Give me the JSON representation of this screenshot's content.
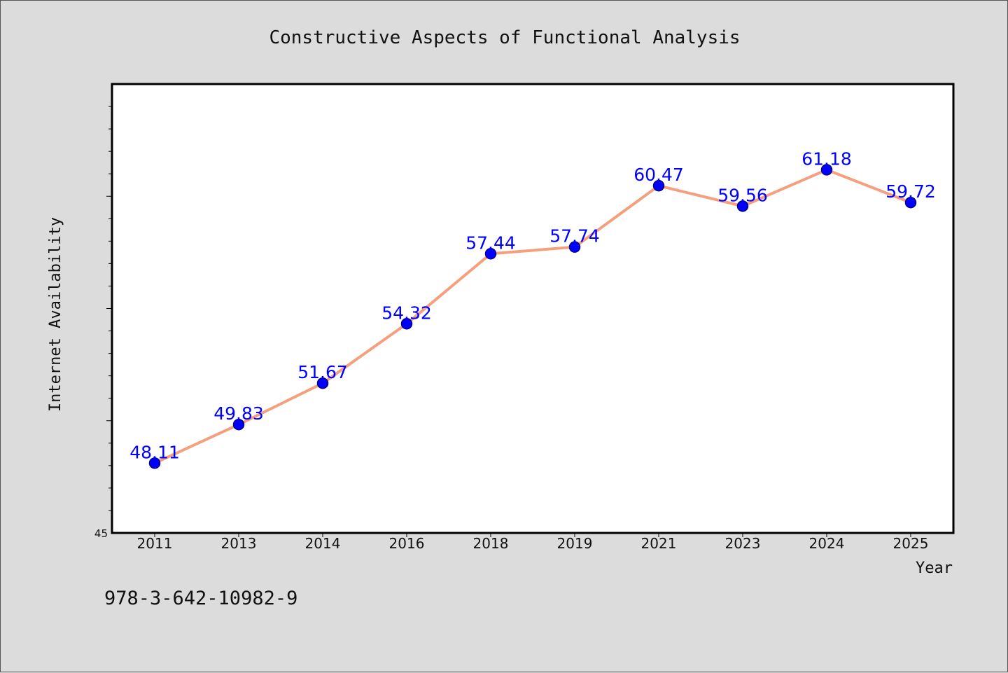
{
  "chart_data": {
    "type": "line",
    "title": "Constructive Aspects of Functional Analysis",
    "xlabel": "Year",
    "ylabel": "Internet Availability",
    "categories": [
      "2011",
      "2013",
      "2014",
      "2016",
      "2018",
      "2019",
      "2021",
      "2023",
      "2024",
      "2025"
    ],
    "series": [
      {
        "values": [
          48.11,
          49.83,
          51.67,
          54.32,
          57.44,
          57.74,
          60.47,
          59.56,
          61.18,
          59.72
        ],
        "data_labels": [
          "48.11",
          "49.83",
          "51.67",
          "54.32",
          "57.44",
          "57.74",
          "60.47",
          "59.56",
          "61.18",
          "59.72"
        ]
      }
    ],
    "ylim": [
      45,
      65
    ],
    "yticks_labeled": [
      "45"
    ],
    "y_minor_tick_step": 1,
    "grid": false,
    "legend": "none",
    "colors": {
      "line": "#f4a07e",
      "marker": "#0000ff",
      "marker_edge": "#000080",
      "labels": "#0000ff"
    }
  },
  "footer_text": "978-3-642-10982-9"
}
